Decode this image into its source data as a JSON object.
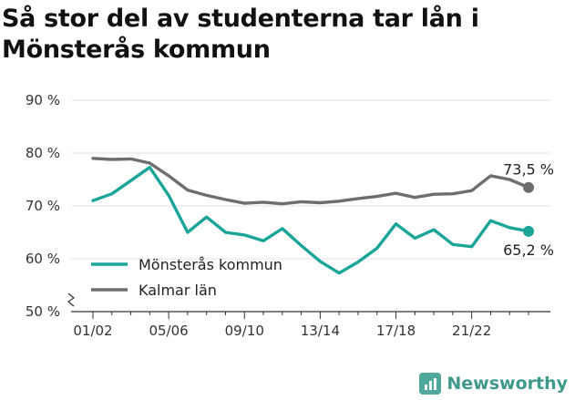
{
  "title": "Så stor del av studenterna tar lån i Mönsterås kommun",
  "brand": {
    "name": "Newsworthy",
    "icon": "bar-chart-icon"
  },
  "chart_data": {
    "type": "line",
    "title": "Så stor del av studenterna tar lån i Mönsterås kommun",
    "x": [
      "01/02",
      "02/03",
      "03/04",
      "04/05",
      "05/06",
      "06/07",
      "07/08",
      "08/09",
      "09/10",
      "10/11",
      "11/12",
      "12/13",
      "13/14",
      "14/15",
      "15/16",
      "16/17",
      "17/18",
      "18/19",
      "19/20",
      "20/21",
      "21/22",
      "22/23",
      "23/24",
      "24/25"
    ],
    "x_tick_labels": [
      "01/02",
      "05/06",
      "09/10",
      "13/14",
      "17/18",
      "21/22"
    ],
    "y_tick_labels": [
      "50 %",
      "60 %",
      "70 %",
      "80 %",
      "90 %"
    ],
    "ylim": [
      50,
      90
    ],
    "y_axis_break": true,
    "grid": true,
    "legend_position": "bottom-left",
    "series": [
      {
        "name": "Mönsterås kommun",
        "color": "#1aa598",
        "values": [
          71.0,
          72.3,
          74.8,
          77.3,
          72.0,
          65.0,
          67.9,
          65.0,
          64.5,
          63.4,
          65.7,
          62.5,
          59.5,
          57.3,
          59.4,
          62.0,
          66.6,
          63.9,
          65.5,
          62.7,
          62.3,
          67.2,
          65.9,
          65.2
        ],
        "end_label": "65,2 %"
      },
      {
        "name": "Kalmar län",
        "color": "#6e6e70",
        "values": [
          79.0,
          78.8,
          78.9,
          78.1,
          75.7,
          73.0,
          72.0,
          71.2,
          70.5,
          70.7,
          70.4,
          70.8,
          70.6,
          70.9,
          71.4,
          71.8,
          72.4,
          71.6,
          72.2,
          72.3,
          72.9,
          75.7,
          75.0,
          73.5
        ],
        "end_label": "73,5 %"
      }
    ]
  }
}
